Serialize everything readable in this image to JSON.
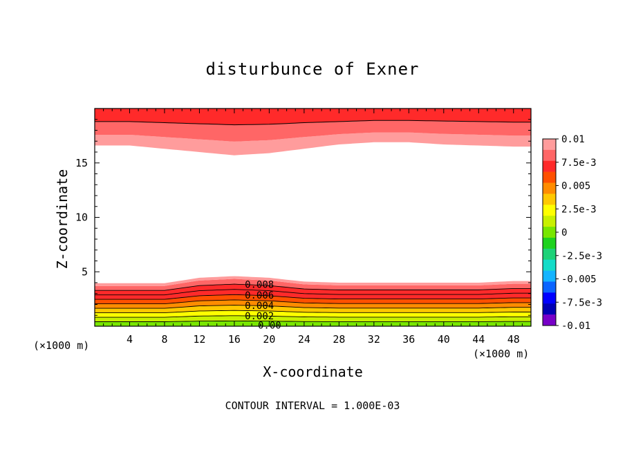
{
  "chart_data": {
    "type": "heatmap",
    "title": "disturbunce of Exner",
    "xlabel": "X-coordinate",
    "ylabel": "Z-coordinate",
    "x_unit_label": "(×1000 m)",
    "y_unit_label": "(×1000 m)",
    "footer": "CONTOUR INTERVAL = 1.000E-03",
    "xlim": [
      0,
      50
    ],
    "ylim": [
      0,
      20
    ],
    "x_ticks": [
      "4",
      "8",
      "12",
      "16",
      "20",
      "24",
      "28",
      "32",
      "36",
      "40",
      "44",
      "48"
    ],
    "x_tick_values": [
      4,
      8,
      12,
      16,
      20,
      24,
      28,
      32,
      36,
      40,
      44,
      48
    ],
    "y_ticks": [
      "5",
      "10",
      "15"
    ],
    "y_tick_values": [
      5,
      10,
      15
    ],
    "contour_labels": [
      "0.008",
      "0.006",
      "0.004",
      "0.002",
      "0.00"
    ],
    "colorbar": {
      "labels": [
        "0.01",
        "7.5e-3",
        "0.005",
        "2.5e-3",
        "0",
        "-2.5e-3",
        "-0.005",
        "-7.5e-3",
        "-0.01"
      ],
      "min": -0.01,
      "max": 0.01,
      "colors": [
        "#ff9c9c",
        "#ff6666",
        "#ff2a2a",
        "#ff5000",
        "#ff8c00",
        "#ffc800",
        "#ffff00",
        "#c8f000",
        "#78e600",
        "#1ed21e",
        "#1ed278",
        "#14dcc8",
        "#14b4ff",
        "#0a64ff",
        "#0000ff",
        "#0000b4",
        "#7800c8"
      ]
    },
    "lower_layer": {
      "interval": 0.001,
      "surface_value": 0.0,
      "top_value": 0.009,
      "profile_x": [
        0,
        4,
        8,
        12,
        16,
        20,
        24,
        28,
        32,
        36,
        40,
        44,
        48,
        50
      ],
      "profile_top_height": [
        3.7,
        3.7,
        3.7,
        4.2,
        4.35,
        4.2,
        3.85,
        3.75,
        3.75,
        3.75,
        3.75,
        3.75,
        3.9,
        3.9
      ]
    },
    "upper_layer": {
      "profile_x": [
        0,
        4,
        8,
        12,
        16,
        20,
        24,
        28,
        32,
        36,
        40,
        44,
        48,
        50
      ],
      "profile_base_height": [
        16.6,
        16.6,
        16.3,
        16.0,
        15.7,
        15.9,
        16.3,
        16.7,
        16.9,
        16.9,
        16.7,
        16.6,
        16.5,
        16.5
      ],
      "contour_height": [
        18.8,
        18.8,
        18.7,
        18.6,
        18.5,
        18.55,
        18.7,
        18.8,
        18.9,
        18.9,
        18.85,
        18.8,
        18.75,
        18.75
      ]
    }
  }
}
